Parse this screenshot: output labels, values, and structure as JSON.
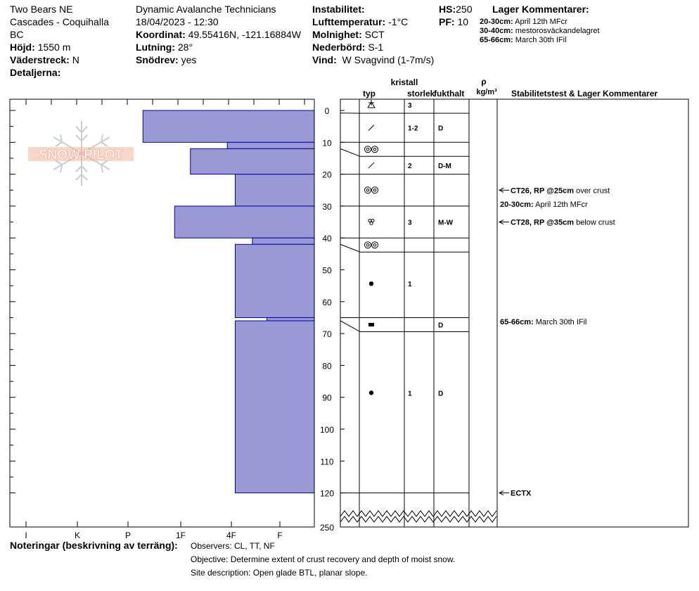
{
  "header": {
    "location": "Two Bears NE",
    "region": "Cascades - Coquihalla",
    "state": "BC",
    "elevation_label": "Höjd:",
    "elevation_value": "1550 m",
    "aspect_label": "Väderstreck:",
    "aspect_value": "N",
    "details_label": "Detaljerna:",
    "operation": "Dynamic Avalanche Technicians",
    "datetime": "18/04/2023 - 12:30",
    "coord_label": "Koordinat:",
    "coord_value": "49.55416N, -121.16884W",
    "slope_label": "Lutning:",
    "slope_value": "28°",
    "drift_label": "Snödrev:",
    "drift_value": "yes",
    "instability_label": "Instabilitet:",
    "airtemp_label": "Lufttemperatur:",
    "airtemp_value": "-1°C",
    "sky_label": "Molnighet:",
    "sky_value": "SCT",
    "precip_label": "Nederbörd:",
    "precip_value": "S-1",
    "wind_label": "Vind:",
    "wind_value": "W Svagvind (1-7m/s)",
    "hs_label": "HS:",
    "hs_value": "250",
    "pf_label": "PF:",
    "pf_value": "10",
    "layer_comments_title": "Lager Kommentarer:",
    "layer_comments": [
      {
        "range": "20-30cm:",
        "text": "April 12th MFcr"
      },
      {
        "range": "30-40cm:",
        "text": "mestorosväckandelagret"
      },
      {
        "range": "65-66cm:",
        "text": "March 30th IFil"
      }
    ]
  },
  "columns": {
    "crystal": "kristall",
    "type": "typ",
    "size": "storlek",
    "moisture": "fukthalt",
    "rho": "ρ",
    "density_unit": "kg/m³",
    "stability": "Stabilitetstest & Lager Kommentarer"
  },
  "watermark": "SNOW PILOT",
  "notes": {
    "label": "Noteringar (beskrivning av terräng):",
    "lines": [
      "Observers: CL, TT, NF",
      "Objective: Determine extent of crust recovery and depth of moist snow.",
      "Site description: Open glade BTL, planar slope."
    ]
  },
  "chart_data": {
    "type": "snow-profile",
    "depth_unit": "cm",
    "depth_range": [
      0,
      250
    ],
    "depth_ticks": [
      0,
      10,
      20,
      30,
      40,
      50,
      60,
      70,
      80,
      90,
      100,
      110,
      120,
      250
    ],
    "hardness_scale": [
      "I",
      "K",
      "P",
      "1F",
      "4F",
      "F"
    ],
    "hardness_fill": "#9999d6",
    "hardness_stroke": "#0000aa",
    "hardness_layers": [
      {
        "top": 0,
        "bottom": 10,
        "hardness": 6.5
      },
      {
        "top": 10,
        "bottom": 12,
        "hardness": 3.3
      },
      {
        "top": 12,
        "bottom": 20,
        "hardness": 4.7
      },
      {
        "top": 20,
        "bottom": 30,
        "hardness": 3.0
      },
      {
        "top": 30,
        "bottom": 40,
        "hardness": 5.3
      },
      {
        "top": 40,
        "bottom": 42,
        "hardness": 2.35
      },
      {
        "top": 42,
        "bottom": 65,
        "hardness": 3.0
      },
      {
        "top": 65,
        "bottom": 66,
        "hardness": 1.8
      },
      {
        "top": 66,
        "bottom": 120,
        "hardness": 3.0
      }
    ],
    "strat_layers": [
      {
        "top": 0,
        "bottom": 0.8,
        "grain": "surface-hoar-icon",
        "size": "3",
        "moisture": ""
      },
      {
        "top": 0.8,
        "bottom": 10,
        "grain": "decomposing-icon",
        "size": "1-2",
        "moisture": "D"
      },
      {
        "top": 10,
        "bottom": 12,
        "grain": "melt-form-icon",
        "size": "",
        "moisture": ""
      },
      {
        "top": 12,
        "bottom": 20,
        "grain": "decomposing-icon",
        "size": "2",
        "moisture": "D-M"
      },
      {
        "top": 20,
        "bottom": 30,
        "grain": "melt-form-icon",
        "size": "",
        "moisture": ""
      },
      {
        "top": 30,
        "bottom": 40,
        "grain": "melt-rounded-icon",
        "size": "3",
        "moisture": "M-W"
      },
      {
        "top": 40,
        "bottom": 42,
        "grain": "melt-form-icon",
        "size": "",
        "moisture": ""
      },
      {
        "top": 42,
        "bottom": 65,
        "grain": "rounded-grain-icon",
        "size": "1",
        "moisture": ""
      },
      {
        "top": 65,
        "bottom": 66,
        "grain": "ice-layer-icon",
        "size": "",
        "moisture": "D"
      },
      {
        "top": 66,
        "bottom": 120,
        "grain": "rounded-grain-icon",
        "size": "1",
        "moisture": "D"
      }
    ],
    "tests": [
      {
        "depth": 25,
        "bold": "CT26, RP @25cm",
        "text": "over crust"
      },
      {
        "depth": 35,
        "bold": "CT28, RP @35cm",
        "text": "below crust"
      },
      {
        "depth": 120,
        "bold": "ECTX",
        "text": ""
      }
    ],
    "layer_notes": [
      {
        "depth": 30,
        "bold": "20-30cm:",
        "text": "April 12th MFcr"
      },
      {
        "depth": 66,
        "bold": "65-66cm:",
        "text": "March 30th IFil"
      }
    ]
  }
}
